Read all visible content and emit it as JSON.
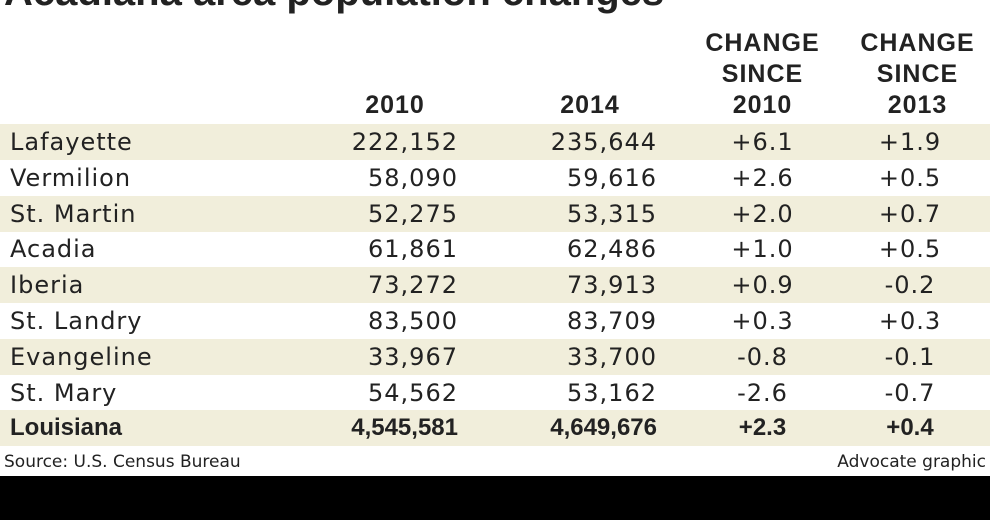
{
  "header": {
    "title": "Acadiana area population changes"
  },
  "table": {
    "columns": [
      "",
      "2010",
      "2014",
      "CHANGE SINCE 2010",
      "CHANGE SINCE 2013"
    ],
    "rows": [
      [
        "Lafayette",
        "222,152",
        "235,644",
        "+6.1",
        "+1.9"
      ],
      [
        "Vermilion",
        "58,090",
        "59,616",
        "+2.6",
        "+0.5"
      ],
      [
        "St. Martin",
        "52,275",
        "53,315",
        "+2.0",
        "+0.7"
      ],
      [
        "Acadia",
        "61,861",
        "62,486",
        "+1.0",
        "+0.5"
      ],
      [
        "Iberia",
        "73,272",
        "73,913",
        "+0.9",
        "-0.2"
      ],
      [
        "St. Landry",
        "83,500",
        "83,709",
        "+0.3",
        "+0.3"
      ],
      [
        "Evangeline",
        "33,967",
        "33,700",
        "-0.8",
        "-0.1"
      ],
      [
        "St. Mary",
        "54,562",
        "53,162",
        "-2.6",
        "-0.7"
      ],
      [
        "Louisiana",
        "4,545,581",
        "4,649,676",
        "+2.3",
        "+0.4"
      ]
    ]
  },
  "footer": {
    "source": "Source: U.S. Census Bureau",
    "credit": "Advocate graphic"
  }
}
